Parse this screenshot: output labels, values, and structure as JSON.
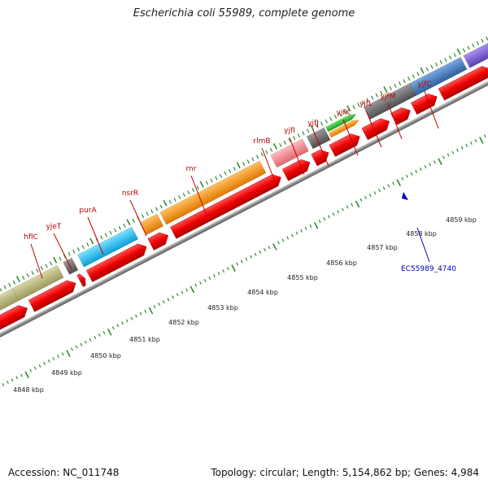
{
  "title": "Escherichia coli 55989, complete genome",
  "footer": {
    "accession": "Accession: NC_011748",
    "topology": "Topology: circular; Length: 5,154,862 bp; Genes: 4,984"
  },
  "colors": {
    "gene_label": "#c00000",
    "locus_label": "#0000c0",
    "red_gene": "#ee0000",
    "olive": "#bab77a",
    "cyan": "#19c4f0",
    "orange": "#f7950c",
    "pink": "#f08a90",
    "dark_gray": "#6c6c6c",
    "steel_blue": "#4a80c0",
    "green": "#33c433",
    "purple": "#7a5fd0",
    "tick_green": "#2f8a2f"
  },
  "gene_labels": [
    "hflC",
    "yjeT",
    "purA",
    "nsrR",
    "rnr",
    "rlmB",
    "yjfI",
    "yjfJ",
    "yjfK",
    "yjfL",
    "yjfM",
    "yjfC"
  ],
  "kbp_labels": [
    "4848 kbp",
    "4849 kbp",
    "4850 kbp",
    "4851 kbp",
    "4852 kbp",
    "4853 kbp",
    "4854 kbp",
    "4855 kbp",
    "4856 kbp",
    "4857 kbp",
    "4858 kbp",
    "4859 kbp"
  ],
  "locus_label": "EC55989_4740"
}
